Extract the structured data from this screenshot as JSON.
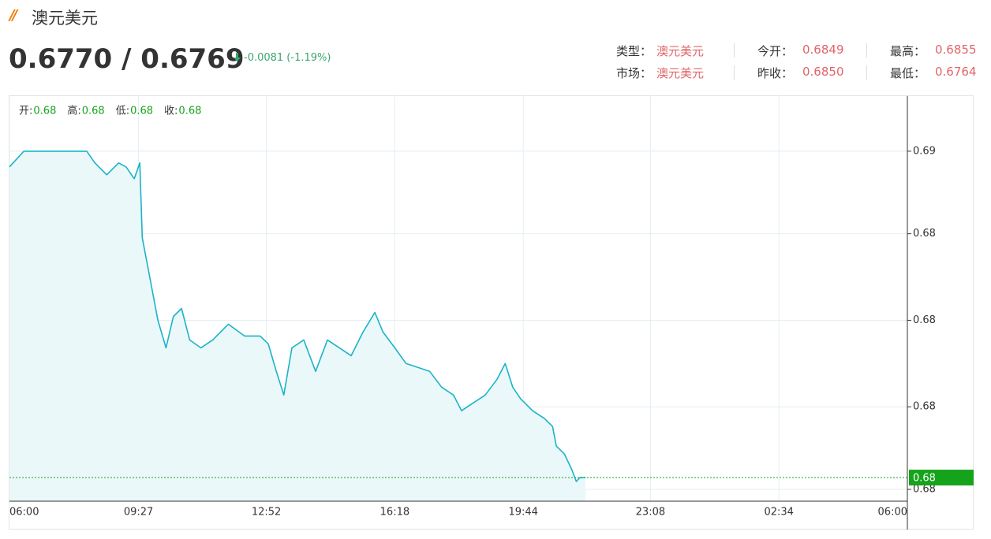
{
  "header": {
    "title": "澳元美元",
    "price": "0.6770 / 0.6769",
    "change": "-0.0081 (-1.19%)"
  },
  "info": [
    [
      {
        "label": "类型：",
        "value": "澳元美元"
      },
      {
        "label": "今开：",
        "value": "0.6849"
      },
      {
        "label": "最高：",
        "value": "0.6855"
      }
    ],
    [
      {
        "label": "市场：",
        "value": "澳元美元"
      },
      {
        "label": "昨收：",
        "value": "0.6850"
      },
      {
        "label": "最低：",
        "value": "0.6764"
      }
    ]
  ],
  "chart_data": {
    "type": "area",
    "ohlc": [
      {
        "label": "开:",
        "value": "0.68"
      },
      {
        "label": "高:",
        "value": "0.68"
      },
      {
        "label": "低:",
        "value": "0.68"
      },
      {
        "label": "收:",
        "value": "0.68"
      }
    ],
    "x": [
      0,
      23,
      61,
      99,
      124,
      137,
      156,
      175,
      187,
      200,
      209,
      213,
      225,
      238,
      251,
      263,
      276,
      289,
      307,
      326,
      351,
      377,
      402,
      415,
      428,
      440,
      453,
      472,
      491,
      510,
      529,
      548,
      567,
      586,
      599,
      618,
      636,
      655,
      674,
      693,
      712,
      725,
      744,
      763,
      782,
      795,
      807,
      820,
      839,
      858,
      871,
      877,
      890,
      902,
      909,
      915,
      924
    ],
    "series": [
      {
        "color": "#1ab3c8",
        "values": [
          0.6849,
          0.6853,
          0.6853,
          0.6853,
          0.6853,
          0.685,
          0.6847,
          0.685,
          0.6849,
          0.6846,
          0.685,
          0.6831,
          0.6821,
          0.681,
          0.6803,
          0.6811,
          0.6813,
          0.6805,
          0.6803,
          0.6805,
          0.6809,
          0.6806,
          0.6806,
          0.6804,
          0.6797,
          0.6791,
          0.6803,
          0.6805,
          0.6797,
          0.6805,
          0.6803,
          0.6801,
          0.6807,
          0.6812,
          0.6807,
          0.6803,
          0.6799,
          0.6798,
          0.6797,
          0.6793,
          0.6791,
          0.6787,
          0.6789,
          0.6791,
          0.6795,
          0.6799,
          0.6793,
          0.679,
          0.6787,
          0.6785,
          0.6783,
          0.6778,
          0.6776,
          0.6772,
          0.6769,
          0.677,
          0.677
        ]
      }
    ],
    "area_color": "#ebf8f9",
    "xlim": [
      0,
      1440
    ],
    "xticks": [
      {
        "value": 0,
        "label": "06:00"
      },
      {
        "value": 207,
        "label": "09:27"
      },
      {
        "value": 412,
        "label": "12:52"
      },
      {
        "value": 618,
        "label": "16:18"
      },
      {
        "value": 824,
        "label": "19:44"
      },
      {
        "value": 1028,
        "label": "23:08"
      },
      {
        "value": 1234,
        "label": "02:34"
      },
      {
        "value": 1440,
        "label": "06:00"
      }
    ],
    "ylim": [
      0.6764,
      0.6867
    ],
    "yticks": [
      {
        "value": 0.6767,
        "label": "0.68"
      },
      {
        "value": 0.6788,
        "label": "0.68"
      },
      {
        "value": 0.681,
        "label": "0.68"
      },
      {
        "value": 0.6832,
        "label": "0.68"
      },
      {
        "value": 0.6853,
        "label": "0.69"
      }
    ],
    "price_line": {
      "value": 0.677,
      "label": "0.68",
      "color": "#15a31c"
    },
    "grid": true
  }
}
